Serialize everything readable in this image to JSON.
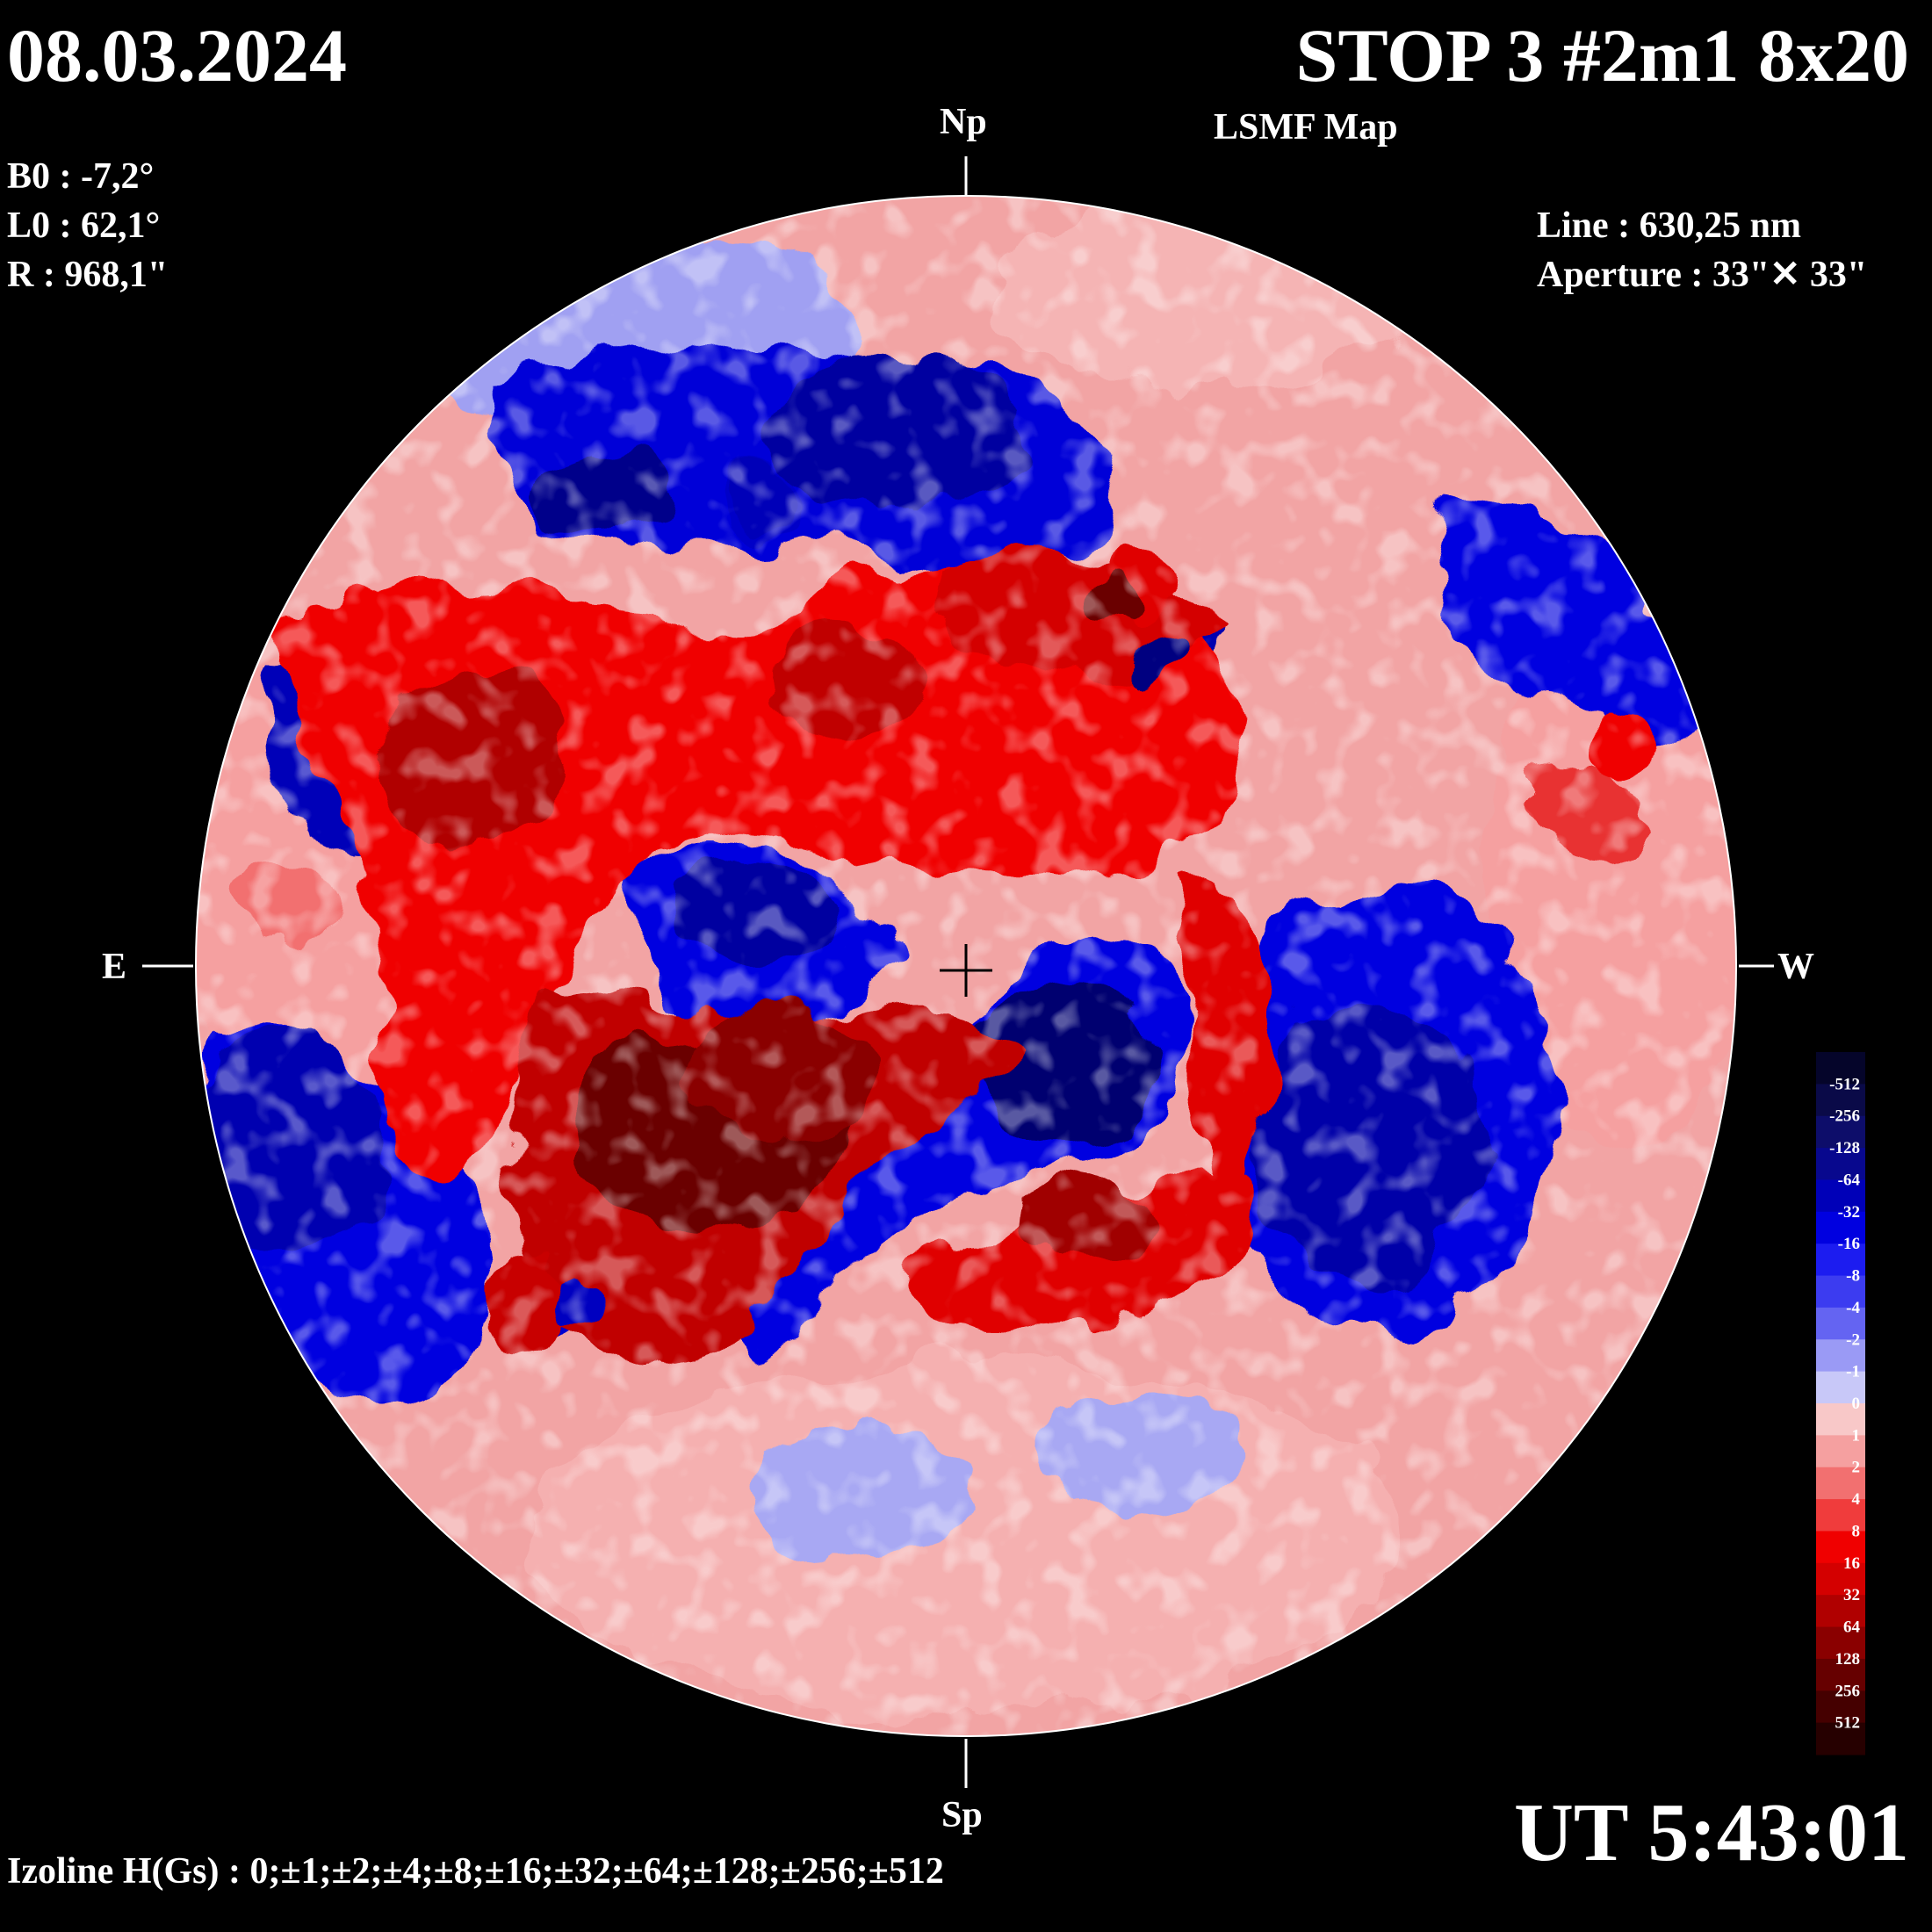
{
  "header": {
    "date": "08.03.2024",
    "title": "STOP 3 #2m1 8x20",
    "subtitle": "LSMF  Map"
  },
  "params": {
    "b0": "B0 : -7,2°",
    "l0": "L0 : 62,1°",
    "r": "R  : 968,1\""
  },
  "instrument": {
    "line": "Line :  630,25 nm",
    "aperture": "Aperture : 33\"✕ 33\""
  },
  "orientation": {
    "north": "Np",
    "south": "Sp",
    "east": "E",
    "west": "W"
  },
  "time": "UT 5:43:01",
  "izoline": "Izoline H(Gs) : 0;±1;±2;±4;±8;±16;±32;±64;±128;±256;±512",
  "colorbar": {
    "labels": [
      "-512",
      "-256",
      "-128",
      "-64",
      "-32",
      "-16",
      "-8",
      "-4",
      "-2",
      "-1",
      "0",
      "1",
      "2",
      "4",
      "8",
      "16",
      "32",
      "64",
      "128",
      "256",
      "512"
    ],
    "colors": [
      "#05052a",
      "#0a0a48",
      "#0d0d6a",
      "#08088e",
      "#0000b8",
      "#0000e0",
      "#1c1cf0",
      "#3c3cf0",
      "#6464f2",
      "#9a9af5",
      "#c8c8f8",
      "#f8c8c8",
      "#f5a0a0",
      "#f27070",
      "#f03c3c",
      "#f00000",
      "#d40000",
      "#b00000",
      "#8a0000",
      "#660000",
      "#450000",
      "#260000"
    ]
  },
  "map": {
    "polarity_colors": {
      "negative_strong": "#000060",
      "negative": "#0000e0",
      "negative_weak": "#9a9af5",
      "neutral_line": "#ffffff",
      "positive_weak": "#f5a0a0",
      "positive": "#f00000",
      "positive_strong": "#6a0000"
    }
  }
}
